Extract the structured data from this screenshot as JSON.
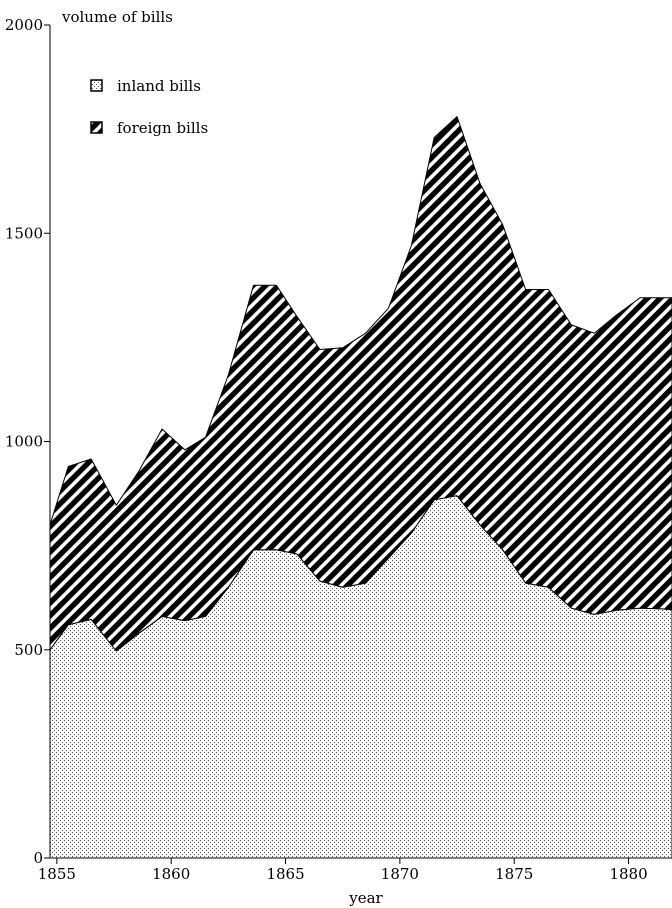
{
  "chart_data": {
    "type": "area",
    "stacked": true,
    "title": "",
    "xlabel": "year",
    "ylabel": "volume of bills",
    "xlim": [
      1854.7,
      1881.9
    ],
    "ylim": [
      0,
      2000
    ],
    "x_ticks": [
      1855,
      1860,
      1865,
      1870,
      1875,
      1880
    ],
    "y_ticks": [
      0,
      500,
      1000,
      1500,
      2000
    ],
    "grid": false,
    "legend_position": "top-left",
    "x": [
      1854.7,
      1855.5,
      1856.5,
      1857.6,
      1858.6,
      1859.6,
      1860.6,
      1861.5,
      1862.5,
      1863.6,
      1864.6,
      1865.5,
      1866.5,
      1867.5,
      1868.5,
      1869.5,
      1870.5,
      1871.5,
      1872.5,
      1873.5,
      1874.5,
      1875.5,
      1876.5,
      1877.5,
      1878.5,
      1879.5,
      1880.5,
      1881.5,
      1881.9
    ],
    "series": [
      {
        "name": "inland bills",
        "pattern": "dots",
        "values": [
          500,
          560,
          573,
          497,
          540,
          580,
          570,
          580,
          650,
          740,
          740,
          730,
          665,
          650,
          660,
          720,
          780,
          860,
          870,
          800,
          740,
          660,
          650,
          600,
          585,
          595,
          600,
          598,
          596
        ]
      },
      {
        "name": "foreign bills",
        "pattern": "diagonal-stripes",
        "values": [
          300,
          380,
          385,
          350,
          390,
          450,
          410,
          430,
          510,
          635,
          635,
          570,
          556,
          575,
          600,
          600,
          690,
          870,
          910,
          820,
          780,
          705,
          715,
          680,
          675,
          710,
          745,
          747,
          749
        ]
      }
    ]
  }
}
